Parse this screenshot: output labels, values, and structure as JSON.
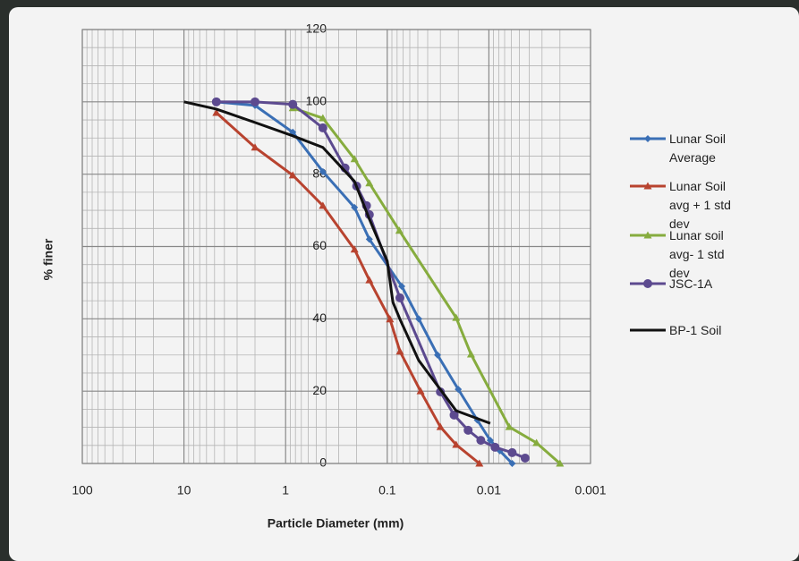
{
  "chart_data": {
    "type": "line",
    "x_label": "Particle Diameter (mm)",
    "y_label": "% finer",
    "xscale": "log",
    "xlim": [
      100,
      0.001
    ],
    "xticks": [
      100,
      10,
      1,
      0.1,
      0.01,
      0.001
    ],
    "ylim": [
      0,
      120
    ],
    "yticks": [
      0,
      20,
      40,
      60,
      80,
      100,
      120
    ],
    "grid": true,
    "legend": "right",
    "series": [
      {
        "name": "Lunar Soil Average",
        "color": "#3a6fb5",
        "marker": "diamond",
        "x": [
          4.8,
          2.0,
          0.85,
          0.43,
          0.21,
          0.15,
          0.072,
          0.049,
          0.032,
          0.02,
          0.013,
          0.0097,
          0.0078,
          0.0059
        ],
        "values": [
          100,
          99,
          91.6,
          80.7,
          70.8,
          62,
          49,
          40,
          30,
          20.5,
          12,
          6.4,
          3.5,
          0
        ]
      },
      {
        "name": "Lunar Soil avg + 1 std dev",
        "color": "#b8432f",
        "marker": "triangle",
        "x": [
          4.8,
          2.0,
          0.85,
          0.43,
          0.21,
          0.15,
          0.094,
          0.075,
          0.047,
          0.03,
          0.021,
          0.0124
        ],
        "values": [
          97,
          87.4,
          79.7,
          71.3,
          59.2,
          50.7,
          39.9,
          31,
          20,
          10.1,
          5.2,
          0
        ]
      },
      {
        "name": "Lunar soil avg- 1 std dev",
        "color": "#86ac3e",
        "marker": "triangle",
        "x": [
          0.85,
          0.43,
          0.21,
          0.15,
          0.076,
          0.021,
          0.015,
          0.0063,
          0.0034,
          0.002
        ],
        "values": [
          98.3,
          95.5,
          84.2,
          77.5,
          64.4,
          40.3,
          30.2,
          10.1,
          5.7,
          0
        ]
      },
      {
        "name": "JSC-1A",
        "color": "#5c4a8f",
        "marker": "circle",
        "x": [
          4.8,
          2.0,
          0.85,
          0.43,
          0.26,
          0.2,
          0.16,
          0.15,
          0.075,
          0.03,
          0.022,
          0.016,
          0.012,
          0.0087,
          0.0059,
          0.0044
        ],
        "values": [
          100,
          100,
          99.3,
          92.8,
          81.7,
          76.7,
          71.3,
          68.8,
          45.8,
          19.8,
          13.4,
          9.2,
          6.4,
          4.5,
          3,
          1.5
        ]
      },
      {
        "name": "BP-1 Soil",
        "color": "#111111",
        "marker": "none",
        "x": [
          10,
          4.8,
          2.0,
          0.85,
          0.43,
          0.21,
          0.15,
          0.1,
          0.088,
          0.075,
          0.049,
          0.021,
          0.0097
        ],
        "values": [
          100,
          98,
          94.3,
          90.6,
          87.4,
          78,
          67.6,
          56,
          44.6,
          39.9,
          28.5,
          14.6,
          11.1
        ]
      }
    ]
  }
}
